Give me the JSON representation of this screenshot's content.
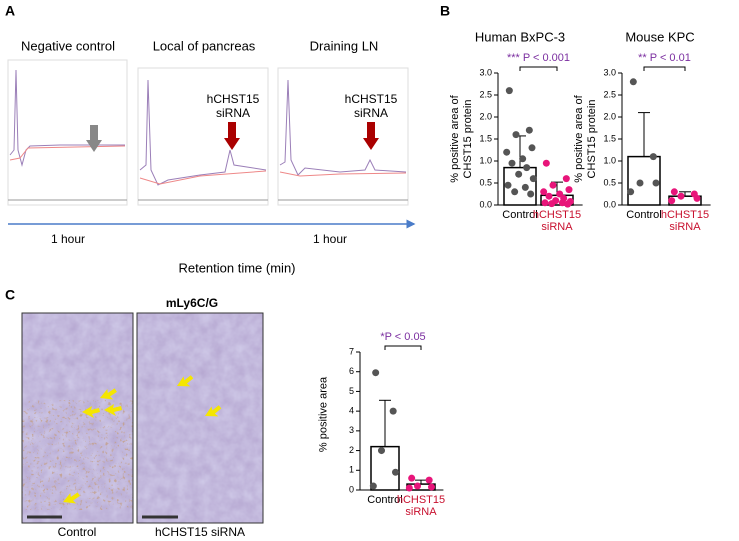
{
  "panels": {
    "a": "A",
    "b": "B",
    "c": "C"
  },
  "chromatogram": {
    "titles": [
      "Negative control",
      "Local of pancreas",
      "Draining LN"
    ],
    "peak_labels": [
      "hCHST15 siRNA",
      "hCHST15 siRNA"
    ],
    "time_labels": [
      "1 hour",
      "1 hour"
    ],
    "x_label": "Retention time (min)"
  },
  "micrographs": {
    "title": "mLy6C/G",
    "labels": [
      "Control",
      "hCHST15 siRNA"
    ]
  },
  "chart_data": [
    {
      "type": "bar",
      "title": "Human BxPC-3",
      "annotation": "*** P < 0.001",
      "y_label": "% positive area of CHST15 protein",
      "categories": [
        "Control",
        "hCHST15 siRNA"
      ],
      "label_colors": [
        "#000000",
        "#c8102e"
      ],
      "values": [
        0.85,
        0.22
      ],
      "errors": [
        0.72,
        0.3
      ],
      "points": [
        [
          2.6,
          1.7,
          1.6,
          1.3,
          1.2,
          1.05,
          0.95,
          0.85,
          0.7,
          0.6,
          0.45,
          0.4,
          0.3,
          0.25
        ],
        [
          0.95,
          0.6,
          0.45,
          0.35,
          0.3,
          0.25,
          0.2,
          0.15,
          0.1,
          0.08,
          0.05,
          0.05,
          0.03,
          0.02
        ]
      ],
      "point_colors": [
        "#555555",
        "#e8157a"
      ],
      "ylim": [
        0,
        3
      ],
      "yticks": [
        {
          "value": 0,
          "label": "0.0"
        },
        0.5,
        {
          "value": 1,
          "label": "1.0"
        },
        1.5,
        {
          "value": 2,
          "label": "2.0"
        },
        2.5,
        {
          "value": 3,
          "label": "3.0"
        }
      ]
    },
    {
      "type": "bar",
      "title": "Mouse KPC",
      "annotation": "** P < 0.01",
      "y_label": "% positive area of CHST15 protein",
      "categories": [
        "Control",
        "hCHST15 siRNA"
      ],
      "label_colors": [
        "#000000",
        "#c8102e"
      ],
      "values": [
        1.1,
        0.2
      ],
      "errors": [
        1.0,
        0.1
      ],
      "points": [
        [
          2.8,
          1.1,
          0.5,
          0.5,
          0.3
        ],
        [
          0.3,
          0.25,
          0.2,
          0.15,
          0.1
        ]
      ],
      "point_colors": [
        "#555555",
        "#e8157a"
      ],
      "ylim": [
        0,
        3
      ],
      "yticks": [
        {
          "value": 0,
          "label": "0.0"
        },
        0.5,
        {
          "value": 1,
          "label": "1.0"
        },
        1.5,
        {
          "value": 2,
          "label": "2.0"
        },
        2.5,
        {
          "value": 3,
          "label": "3.0"
        }
      ]
    },
    {
      "type": "bar",
      "annotation": "*P < 0.05",
      "y_label": "% positive area",
      "categories": [
        "Control",
        "hCHST15 siRNA"
      ],
      "label_colors": [
        "#000000",
        "#c8102e"
      ],
      "values": [
        2.2,
        0.3
      ],
      "errors": [
        2.35,
        0.2
      ],
      "points": [
        [
          5.95,
          4.0,
          2.0,
          0.9,
          0.2
        ],
        [
          0.6,
          0.5,
          0.2,
          0.15,
          0.1
        ]
      ],
      "point_colors": [
        "#555555",
        "#e8157a"
      ],
      "ylim": [
        0,
        7
      ],
      "yticks": [
        0,
        1,
        2,
        3,
        4,
        5,
        6,
        7
      ]
    }
  ]
}
